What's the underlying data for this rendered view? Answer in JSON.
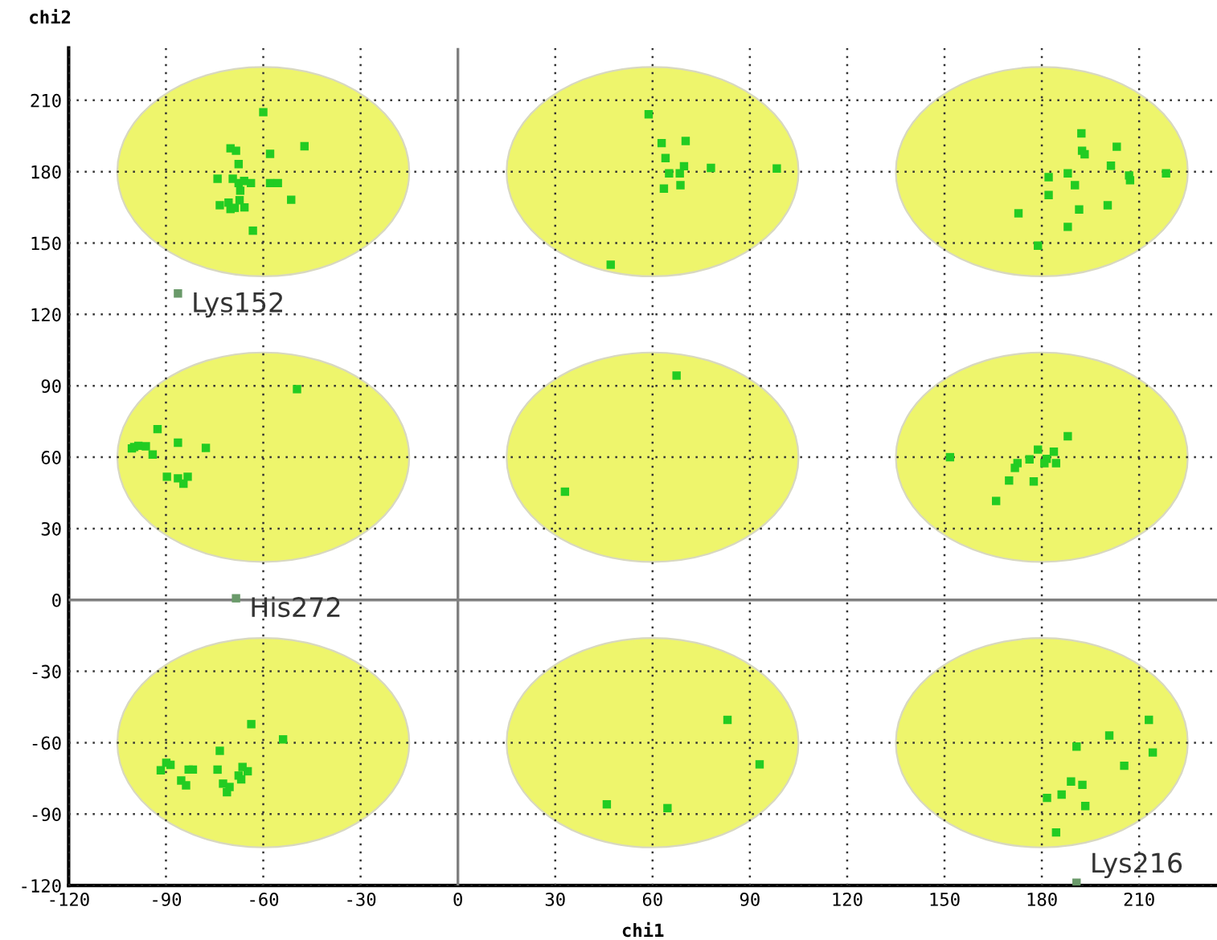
{
  "chart_data": {
    "type": "scatter",
    "xlabel": "chi1",
    "ylabel": "chi2",
    "xlim": [
      -120,
      234
    ],
    "ylim": [
      -120,
      232
    ],
    "xticks": [
      -120,
      -90,
      -60,
      -30,
      0,
      30,
      60,
      90,
      120,
      150,
      180,
      210
    ],
    "yticks": [
      -120,
      -90,
      -60,
      -30,
      0,
      30,
      60,
      90,
      120,
      150,
      180,
      210
    ],
    "grid": true,
    "marker": "square",
    "legend": false,
    "series": [
      {
        "color": "#22cc22",
        "x": [
          -60,
          -70.1,
          -68.4,
          -57.9,
          -47.3,
          -67.6,
          -74.1,
          -69.4,
          -67.6,
          -65.9,
          -63.8,
          -57.9,
          -55.5,
          -67.1,
          -51.4,
          -73.4,
          -70.7,
          -70.1,
          -68.8,
          -67.3,
          -65.8,
          -63.2,
          58.8,
          62.8,
          70.2,
          64,
          69.7,
          65.1,
          68.4,
          78,
          98.3,
          63.5,
          68.6,
          47.1,
          192.2,
          192.4,
          193.2,
          203.1,
          201.3,
          206.9,
          207.2,
          218.3,
          182.1,
          188,
          190.2,
          182.1,
          191.5,
          200.3,
          172.8,
          188,
          178.8,
          -49.6,
          -92.6,
          -86.3,
          -77.7,
          -99.8,
          -98.5,
          -96.2,
          -94.1,
          -100.5,
          -89.7,
          -86.3,
          -83.3,
          -84.6,
          33,
          67.4,
          151.7,
          188,
          178.8,
          183.7,
          176.2,
          181.5,
          184.4,
          180.8,
          172.5,
          171.7,
          169.9,
          177.5,
          165.9,
          -63.7,
          -53.9,
          -73.4,
          -89.9,
          -88.6,
          -91.6,
          -83,
          -81.7,
          -74.1,
          -66.4,
          -64.8,
          -67.6,
          -66.8,
          -85.3,
          -83.8,
          -72.4,
          -70.4,
          -71.2,
          45.9,
          64.6,
          83.1,
          93,
          213,
          200.8,
          190.7,
          214.2,
          205.4,
          189,
          192.5,
          181.6,
          186.1,
          193.4,
          184.4
        ],
        "values": [
          205,
          189.8,
          188.8,
          187.5,
          190.7,
          183.2,
          177,
          177,
          175.2,
          176.1,
          175.2,
          175.2,
          175.2,
          172,
          168.2,
          165.9,
          167,
          164.3,
          164.8,
          168,
          165,
          155.2,
          204.1,
          192,
          192.9,
          185.7,
          182.3,
          179.3,
          179.3,
          181.6,
          181.3,
          172.9,
          174.3,
          140.9,
          196.1,
          188.8,
          187.3,
          190.5,
          182.5,
          178.4,
          176.4,
          179.3,
          177.7,
          179.3,
          174.3,
          170.2,
          164.1,
          165.9,
          162.5,
          156.8,
          148.9,
          88.6,
          71.8,
          66.1,
          63.9,
          64.3,
          64.8,
          64.6,
          61.1,
          63.7,
          51.8,
          51.1,
          51.8,
          48.9,
          45.5,
          94.3,
          60,
          68.8,
          63.2,
          62.3,
          59.1,
          59.3,
          57.5,
          57.5,
          57.5,
          55.5,
          50.2,
          49.8,
          41.6,
          -52.2,
          -58.6,
          -63.4,
          -68.4,
          -69.3,
          -71.6,
          -71.3,
          -71.3,
          -71.3,
          -70.2,
          -72,
          -73.8,
          -75.4,
          -75.9,
          -77.9,
          -77.2,
          -78.6,
          -80.8,
          -85.9,
          -87.5,
          -50.4,
          -69.1,
          -50.4,
          -57,
          -61.6,
          -64.1,
          -69.7,
          -76.3,
          -77.7,
          -83.2,
          -81.8,
          -86.6,
          -97.7
        ]
      },
      {
        "color": "#6a9a6a",
        "x": [
          -86.3,
          -68.4,
          190.7
        ],
        "values": [
          128.8,
          0.7,
          -118.8
        ]
      }
    ],
    "annotations": [
      {
        "text": "Lys152",
        "x": -86.3,
        "y": 128.8
      },
      {
        "text": "His272",
        "x": -68.4,
        "y": 0.7
      },
      {
        "text": "Lys216",
        "x": 190.7,
        "y": -118.8
      }
    ]
  }
}
